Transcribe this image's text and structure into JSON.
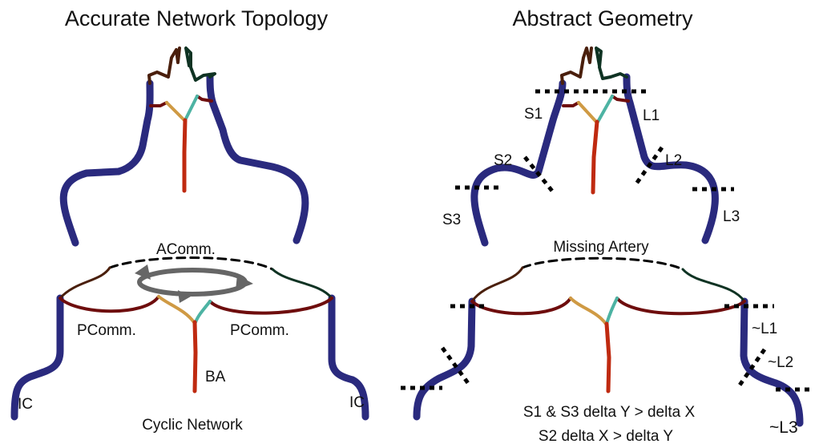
{
  "colors": {
    "internal_carotid": "#2a2a7e",
    "basilar": "#bf2a10",
    "posterior_communicating": "#6e0d0d",
    "left_anterior": "#4a1f0c",
    "right_anterior": "#0f3323",
    "left_branch": "#cf9a44",
    "right_branch": "#4db3a3",
    "cycle_arrow": "#666666",
    "cut_marker": "#000000"
  },
  "left_panel": {
    "title": "Accurate Network Topology",
    "labels": {
      "acomm": "AComm.",
      "pcomm_left": "PComm.",
      "pcomm_right": "PComm.",
      "ba": "BA",
      "ic_left": "IC",
      "ic_right": "IC",
      "caption": "Cyclic Network"
    },
    "icons": {
      "cycle": "circular-arrows-icon"
    }
  },
  "right_panel": {
    "title": "Abstract Geometry",
    "labels": {
      "s1": "S1",
      "s2": "S2",
      "s3": "S3",
      "l1": "L1",
      "l2": "L2",
      "l3": "L3",
      "missing": "Missing Artery",
      "tl1": "~L1",
      "tl2": "~L2",
      "tl3": "~L3",
      "note1": "S1  & S3 delta Y > delta X",
      "note2": "S2 delta X > delta Y"
    }
  }
}
